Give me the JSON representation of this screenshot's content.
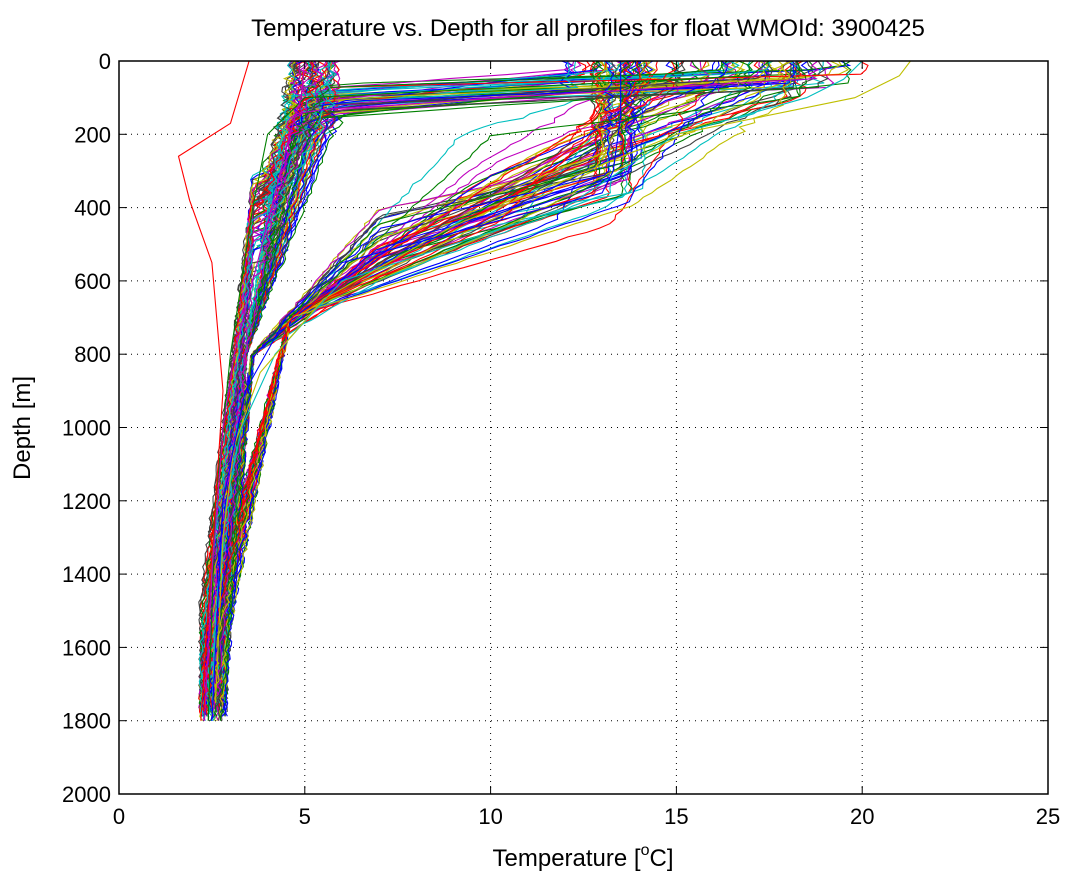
{
  "chart_data": {
    "type": "line",
    "title": "Temperature vs. Depth for all profiles for float WMOId: 3900425",
    "xlabel_prefix": "Temperature [",
    "xlabel_sup": "o",
    "xlabel_suffix": "C]",
    "ylabel": "Depth [m]",
    "xlim": [
      0,
      25
    ],
    "ylim": [
      0,
      2000
    ],
    "y_reversed": true,
    "grid": true,
    "grid_style": "dotted",
    "x_ticks": [
      0,
      5,
      10,
      15,
      20,
      25
    ],
    "y_ticks": [
      0,
      200,
      400,
      600,
      800,
      1000,
      1200,
      1400,
      1600,
      1800,
      2000
    ],
    "colors": [
      "#0000ff",
      "#008000",
      "#ff0000",
      "#00bfbf",
      "#bf00bf",
      "#bfbf00",
      "#404040"
    ],
    "profile_count_estimate": 180,
    "representative_profiles": [
      {
        "temp": [
          17.5,
          17.0,
          5.0,
          4.0,
          3.6,
          3.3,
          3.0,
          2.8,
          2.6,
          2.5,
          2.4
        ],
        "depth": [
          0,
          40,
          100,
          200,
          400,
          600,
          800,
          1000,
          1200,
          1500,
          1800
        ]
      },
      {
        "temp": [
          20.0,
          19.5,
          18.5,
          15.0,
          12.0,
          6.0,
          4.2,
          3.3,
          2.9,
          2.6,
          2.5
        ],
        "depth": [
          0,
          50,
          100,
          200,
          400,
          600,
          800,
          1000,
          1200,
          1500,
          1800
        ]
      },
      {
        "temp": [
          21.3,
          21.0,
          19.8,
          15.0,
          9.0,
          5.5,
          3.8,
          3.1,
          2.8,
          2.6
        ],
        "depth": [
          0,
          40,
          100,
          200,
          450,
          650,
          850,
          1050,
          1300,
          1750
        ]
      },
      {
        "temp": [
          13.5,
          13.5,
          13.3,
          13.0,
          6.0,
          4.5,
          3.4,
          2.8,
          2.5
        ],
        "depth": [
          0,
          150,
          300,
          360,
          550,
          700,
          900,
          1200,
          1800
        ]
      },
      {
        "temp": [
          3.5,
          3.0,
          1.6,
          1.9,
          2.5,
          2.8,
          2.6,
          2.4,
          2.2
        ],
        "depth": [
          0,
          170,
          260,
          380,
          550,
          900,
          1200,
          1500,
          1800
        ]
      },
      {
        "temp": [
          5.0,
          4.9,
          4.6,
          4.1,
          3.6,
          3.1,
          2.8,
          2.5,
          2.3
        ],
        "depth": [
          0,
          100,
          200,
          400,
          600,
          800,
          1000,
          1400,
          1800
        ]
      }
    ]
  }
}
